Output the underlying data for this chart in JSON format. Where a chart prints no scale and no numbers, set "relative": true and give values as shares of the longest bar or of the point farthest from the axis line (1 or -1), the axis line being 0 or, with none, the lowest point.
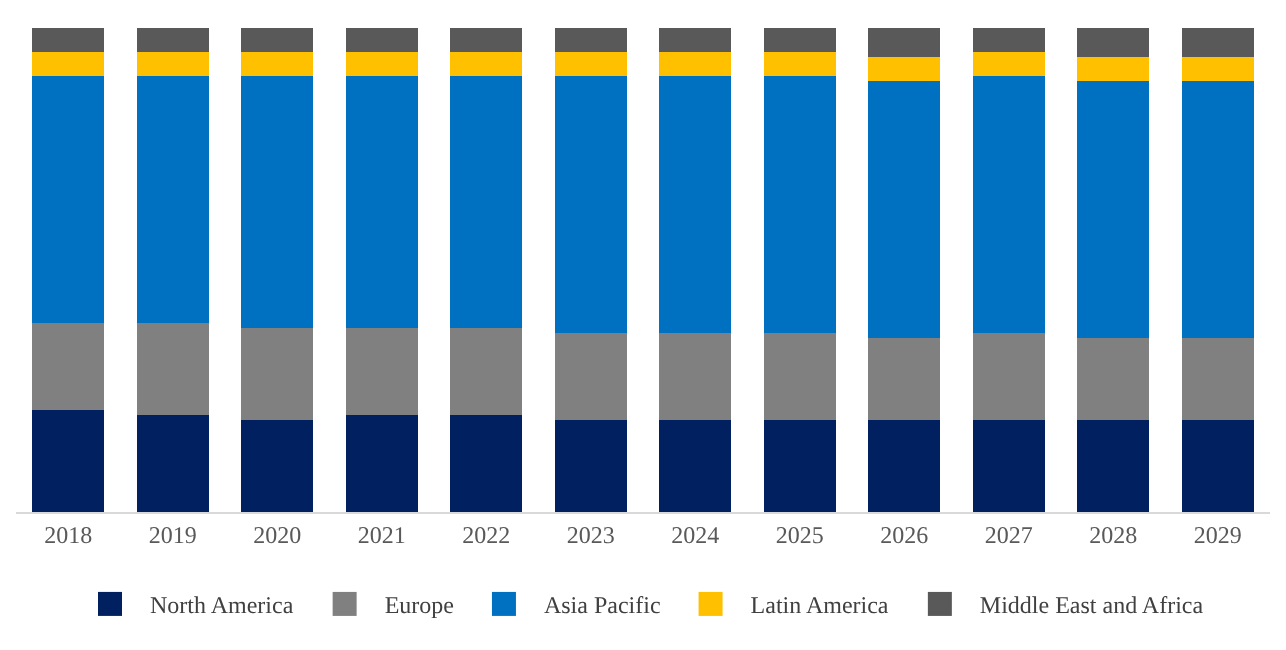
{
  "chart_data": {
    "type": "bar",
    "stacked": true,
    "relative": true,
    "legend": "bottom",
    "categories": [
      "2018",
      "2019",
      "2020",
      "2021",
      "2022",
      "2023",
      "2024",
      "2025",
      "2026",
      "2027",
      "2028",
      "2029"
    ],
    "series": [
      {
        "name": "North America",
        "color": "#002060",
        "values": [
          0.21,
          0.2,
          0.19,
          0.2,
          0.2,
          0.19,
          0.19,
          0.19,
          0.19,
          0.19,
          0.19,
          0.19
        ]
      },
      {
        "name": "Europe",
        "color": "#808080",
        "values": [
          0.18,
          0.19,
          0.19,
          0.18,
          0.18,
          0.18,
          0.18,
          0.18,
          0.17,
          0.18,
          0.17,
          0.17
        ]
      },
      {
        "name": "Asia Pacific",
        "color": "#0070c0",
        "values": [
          0.51,
          0.51,
          0.52,
          0.52,
          0.52,
          0.53,
          0.53,
          0.53,
          0.53,
          0.53,
          0.53,
          0.53
        ]
      },
      {
        "name": "Latin America",
        "color": "#ffc000",
        "values": [
          0.05,
          0.05,
          0.05,
          0.05,
          0.05,
          0.05,
          0.05,
          0.05,
          0.05,
          0.05,
          0.05,
          0.05
        ]
      },
      {
        "name": "Middle East and Africa",
        "color": "#595959",
        "values": [
          0.05,
          0.05,
          0.05,
          0.05,
          0.05,
          0.05,
          0.05,
          0.05,
          0.06,
          0.05,
          0.06,
          0.06
        ]
      }
    ]
  }
}
